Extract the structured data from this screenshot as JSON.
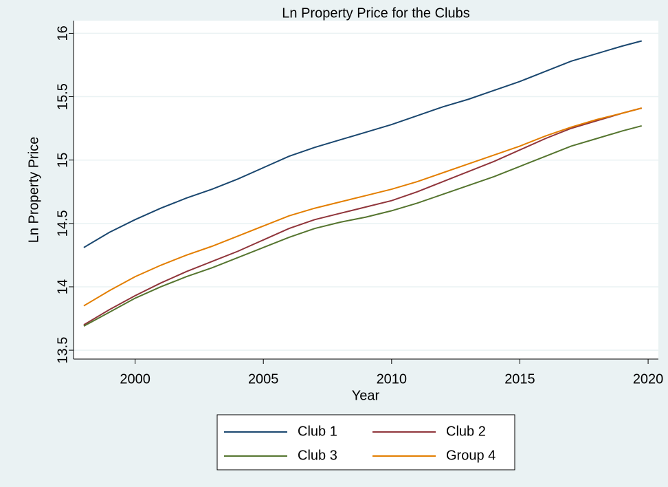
{
  "chart_data": {
    "type": "line",
    "title": "Ln Property Price for the Clubs",
    "x_label": "Year",
    "y_label": "Ln Property Price",
    "x": [
      1998,
      1999,
      2000,
      2001,
      2002,
      2003,
      2004,
      2005,
      2006,
      2007,
      2008,
      2009,
      2010,
      2011,
      2012,
      2013,
      2014,
      2015,
      2016,
      2017,
      2018,
      2019,
      2019.75
    ],
    "series": [
      {
        "name": "Club 1",
        "color": "#1a476f",
        "values": [
          14.31,
          14.43,
          14.53,
          14.62,
          14.7,
          14.77,
          14.85,
          14.94,
          15.03,
          15.1,
          15.16,
          15.22,
          15.28,
          15.35,
          15.42,
          15.48,
          15.55,
          15.62,
          15.7,
          15.78,
          15.84,
          15.9,
          15.94
        ]
      },
      {
        "name": "Club 2",
        "color": "#90353b",
        "values": [
          13.7,
          13.82,
          13.93,
          14.03,
          14.12,
          14.2,
          14.28,
          14.37,
          14.46,
          14.53,
          14.58,
          14.63,
          14.68,
          14.75,
          14.83,
          14.91,
          14.99,
          15.08,
          15.17,
          15.25,
          15.31,
          15.37,
          15.41
        ]
      },
      {
        "name": "Club 3",
        "color": "#55752f",
        "values": [
          13.69,
          13.8,
          13.91,
          14.0,
          14.08,
          14.15,
          14.23,
          14.31,
          14.39,
          14.46,
          14.51,
          14.55,
          14.6,
          14.66,
          14.73,
          14.8,
          14.87,
          14.95,
          15.03,
          15.11,
          15.17,
          15.23,
          15.27
        ]
      },
      {
        "name": "Group 4",
        "color": "#e37e00",
        "values": [
          13.85,
          13.97,
          14.08,
          14.17,
          14.25,
          14.32,
          14.4,
          14.48,
          14.56,
          14.62,
          14.67,
          14.72,
          14.77,
          14.83,
          14.9,
          14.97,
          15.04,
          15.11,
          15.19,
          15.26,
          15.32,
          15.37,
          15.41
        ]
      }
    ],
    "xlim": [
      1997.6,
      2020.4
    ],
    "xticks": [
      2000,
      2005,
      2010,
      2015,
      2020
    ],
    "ylim": [
      13.43,
      16.1
    ],
    "yticks": [
      13.5,
      14,
      14.5,
      15,
      15.5,
      16
    ],
    "grid": true,
    "legend_position": "bottom"
  }
}
